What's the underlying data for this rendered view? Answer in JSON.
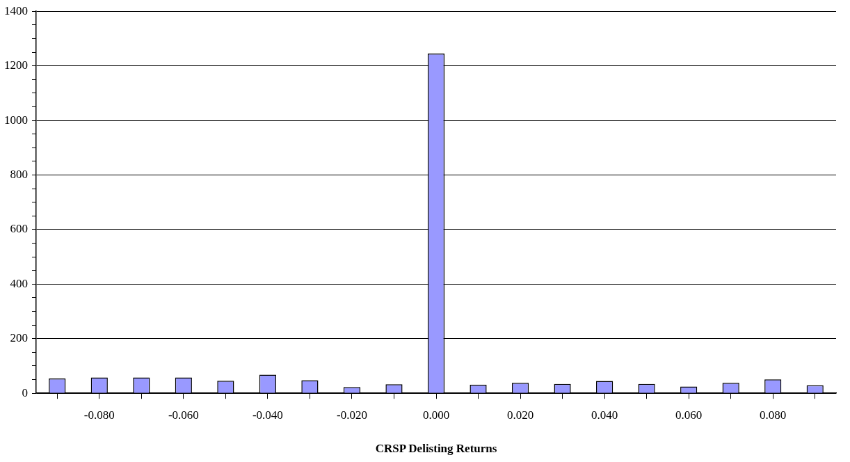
{
  "chart_data": {
    "type": "bar",
    "xlabel": "CRSP Delisting Returns",
    "categories": [
      null,
      "-0.080",
      null,
      "-0.060",
      null,
      "-0.040",
      null,
      "-0.020",
      null,
      "0.000",
      null,
      "0.020",
      null,
      "0.040",
      null,
      "0.060",
      null,
      "0.080",
      null
    ],
    "values": [
      54,
      58,
      58,
      58,
      46,
      68,
      48,
      23,
      33,
      1245,
      31,
      38,
      34,
      45,
      34,
      25,
      38,
      51,
      29
    ],
    "color": "#9999ff",
    "ylim": [
      0,
      1400
    ],
    "yticks": [
      0,
      {
        "value": 50,
        "label": null
      },
      {
        "value": 100,
        "label": null
      },
      {
        "value": 150,
        "label": null
      },
      200,
      {
        "value": 250,
        "label": null
      },
      {
        "value": 300,
        "label": null
      },
      {
        "value": 350,
        "label": null
      },
      400,
      {
        "value": 450,
        "label": null
      },
      {
        "value": 500,
        "label": null
      },
      {
        "value": 550,
        "label": null
      },
      600,
      {
        "value": 650,
        "label": null
      },
      {
        "value": 700,
        "label": null
      },
      {
        "value": 750,
        "label": null
      },
      800,
      {
        "value": 850,
        "label": null
      },
      {
        "value": 900,
        "label": null
      },
      {
        "value": 950,
        "label": null
      },
      1000,
      {
        "value": 1050,
        "label": null
      },
      {
        "value": 1100,
        "label": null
      },
      {
        "value": 1150,
        "label": null
      },
      1200,
      {
        "value": 1250,
        "label": null
      },
      {
        "value": 1300,
        "label": null
      },
      {
        "value": 1350,
        "label": null
      },
      1400
    ],
    "grid": "y",
    "legend": false
  }
}
